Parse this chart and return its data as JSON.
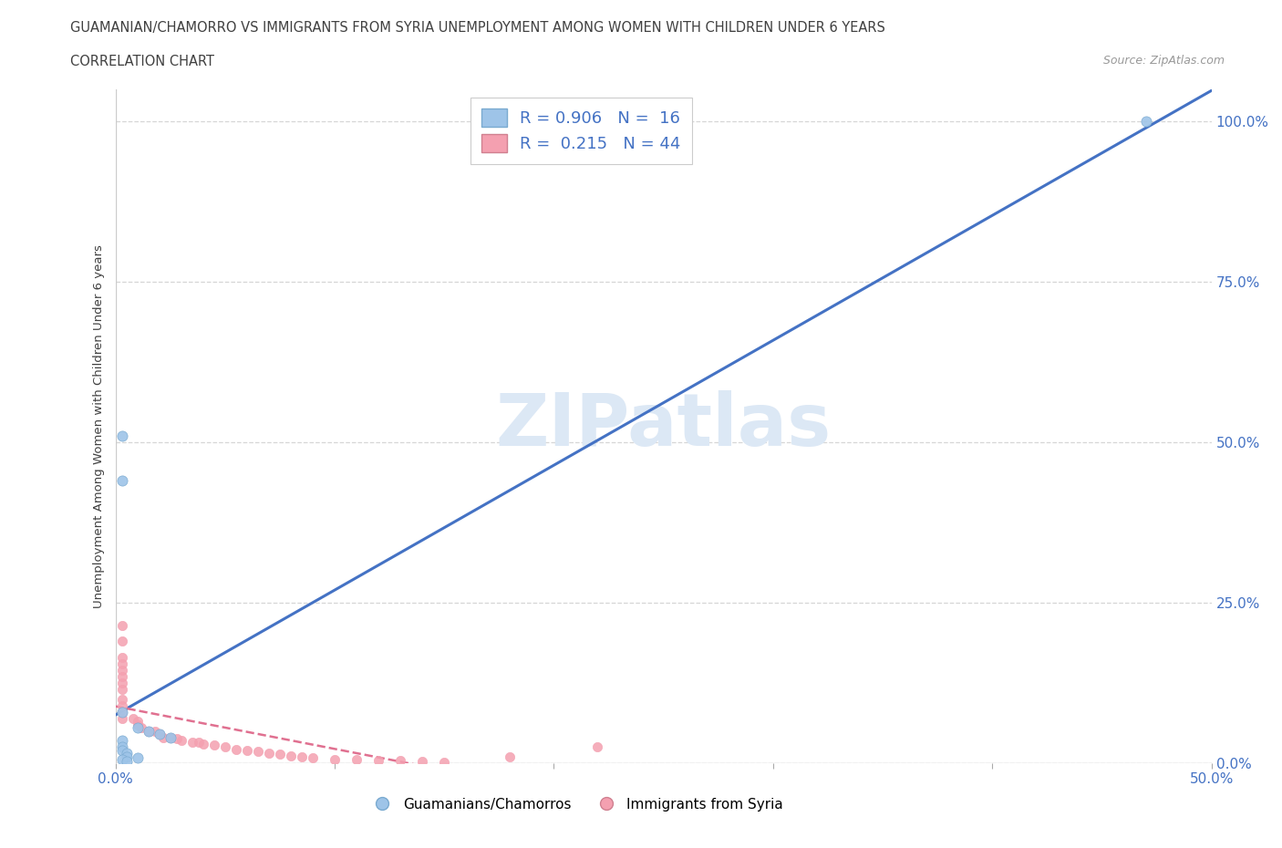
{
  "title_line1": "GUAMANIAN/CHAMORRO VS IMMIGRANTS FROM SYRIA UNEMPLOYMENT AMONG WOMEN WITH CHILDREN UNDER 6 YEARS",
  "title_line2": "CORRELATION CHART",
  "source_text": "Source: ZipAtlas.com",
  "ylabel": "Unemployment Among Women with Children Under 6 years",
  "xlim": [
    0.0,
    0.5
  ],
  "ylim": [
    0.0,
    1.05
  ],
  "x_tick_positions": [
    0.0,
    0.1,
    0.2,
    0.3,
    0.4,
    0.5
  ],
  "x_tick_labels": [
    "0.0%",
    "",
    "",
    "",
    "",
    "50.0%"
  ],
  "y_tick_positions": [
    0.0,
    0.25,
    0.5,
    0.75,
    1.0
  ],
  "y_tick_labels": [
    "0.0%",
    "25.0%",
    "50.0%",
    "75.0%",
    "100.0%"
  ],
  "watermark": "ZIPatlas",
  "blue_scatter": [
    [
      0.003,
      0.51
    ],
    [
      0.003,
      0.44
    ],
    [
      0.003,
      0.08
    ],
    [
      0.01,
      0.055
    ],
    [
      0.015,
      0.05
    ],
    [
      0.02,
      0.045
    ],
    [
      0.025,
      0.04
    ],
    [
      0.003,
      0.035
    ],
    [
      0.003,
      0.025
    ],
    [
      0.003,
      0.02
    ],
    [
      0.005,
      0.015
    ],
    [
      0.005,
      0.01
    ],
    [
      0.01,
      0.008
    ],
    [
      0.003,
      0.005
    ],
    [
      0.005,
      0.003
    ],
    [
      0.47,
      1.0
    ]
  ],
  "pink_scatter": [
    [
      0.003,
      0.215
    ],
    [
      0.003,
      0.19
    ],
    [
      0.003,
      0.165
    ],
    [
      0.003,
      0.155
    ],
    [
      0.003,
      0.145
    ],
    [
      0.003,
      0.135
    ],
    [
      0.003,
      0.125
    ],
    [
      0.003,
      0.115
    ],
    [
      0.003,
      0.1
    ],
    [
      0.003,
      0.09
    ],
    [
      0.003,
      0.08
    ],
    [
      0.003,
      0.07
    ],
    [
      0.008,
      0.07
    ],
    [
      0.01,
      0.065
    ],
    [
      0.01,
      0.06
    ],
    [
      0.012,
      0.055
    ],
    [
      0.015,
      0.05
    ],
    [
      0.018,
      0.05
    ],
    [
      0.02,
      0.045
    ],
    [
      0.022,
      0.04
    ],
    [
      0.025,
      0.04
    ],
    [
      0.028,
      0.038
    ],
    [
      0.03,
      0.035
    ],
    [
      0.035,
      0.033
    ],
    [
      0.038,
      0.032
    ],
    [
      0.04,
      0.03
    ],
    [
      0.045,
      0.028
    ],
    [
      0.05,
      0.025
    ],
    [
      0.055,
      0.022
    ],
    [
      0.06,
      0.02
    ],
    [
      0.065,
      0.018
    ],
    [
      0.07,
      0.016
    ],
    [
      0.075,
      0.014
    ],
    [
      0.08,
      0.012
    ],
    [
      0.085,
      0.01
    ],
    [
      0.09,
      0.008
    ],
    [
      0.1,
      0.006
    ],
    [
      0.11,
      0.005
    ],
    [
      0.12,
      0.004
    ],
    [
      0.13,
      0.004
    ],
    [
      0.14,
      0.003
    ],
    [
      0.15,
      0.002
    ],
    [
      0.18,
      0.01
    ],
    [
      0.22,
      0.025
    ]
  ],
  "blue_line_color": "#4472c4",
  "pink_line_color": "#e07090",
  "blue_scatter_color": "#9ec4e8",
  "pink_scatter_color": "#f4a0b0",
  "grid_color": "#cccccc",
  "background_color": "#ffffff",
  "title_color": "#404040",
  "watermark_color": "#dce8f5",
  "R_blue": 0.906,
  "N_blue": 16,
  "R_pink": 0.215,
  "N_pink": 44,
  "legend_label_blue": "R = 0.906   N =  16",
  "legend_label_pink": "R =  0.215   N = 44",
  "legend_group_blue": "Guamanians/Chamorros",
  "legend_group_pink": "Immigrants from Syria"
}
